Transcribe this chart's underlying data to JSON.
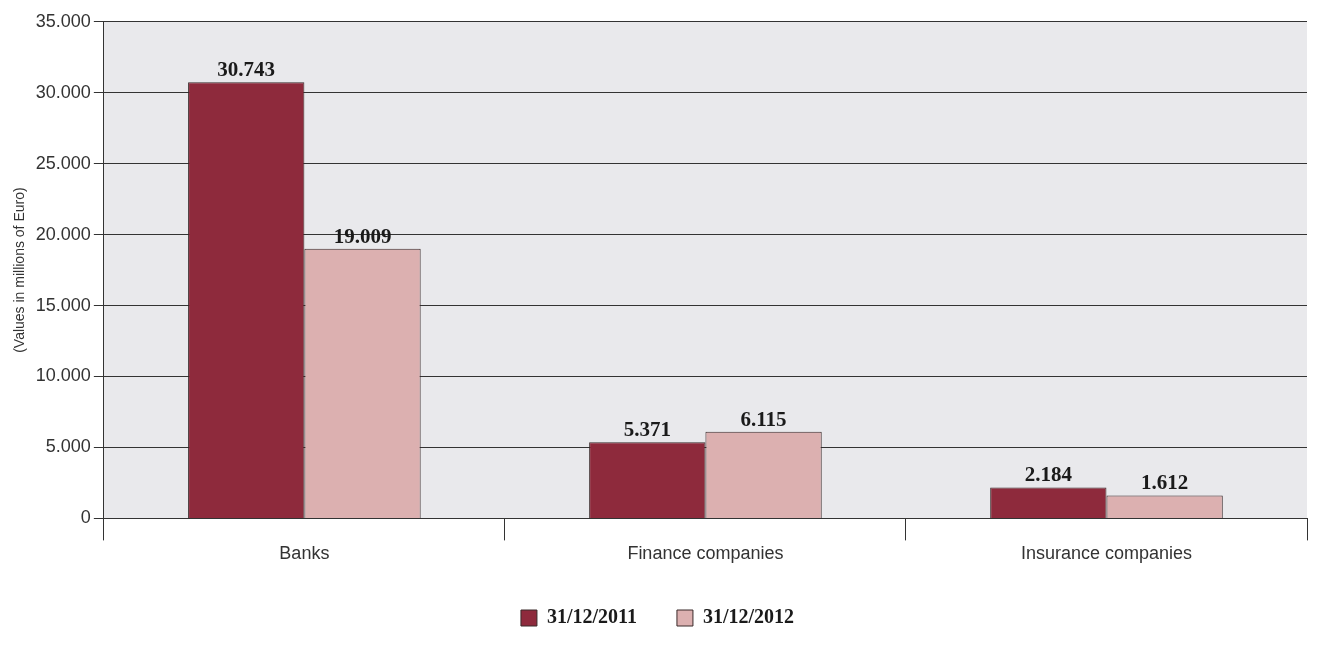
{
  "chart_data": {
    "type": "bar",
    "ylabel": "(Values in millions of Euro)",
    "categories": [
      "Banks",
      "Finance companies",
      "Insurance companies"
    ],
    "series": [
      {
        "name": "31/12/2011",
        "color": "#8e2a3c",
        "values": [
          30743,
          5371,
          2184
        ],
        "value_labels": [
          "30.743",
          "5.371",
          "2.184"
        ]
      },
      {
        "name": "31/12/2012",
        "color": "#dcb0b0",
        "values": [
          19009,
          6115,
          1612
        ],
        "value_labels": [
          "19.009",
          "6.115",
          "1.612"
        ]
      }
    ],
    "ylim": [
      0,
      35000
    ],
    "yticks": [
      {
        "value": 0,
        "label": "0"
      },
      {
        "value": 5000,
        "label": "5.000"
      },
      {
        "value": 10000,
        "label": "10.000"
      },
      {
        "value": 15000,
        "label": "15.000"
      },
      {
        "value": 20000,
        "label": "20.000"
      },
      {
        "value": 25000,
        "label": "25.000"
      },
      {
        "value": 30000,
        "label": "30.000"
      },
      {
        "value": 35000,
        "label": "35.000"
      }
    ],
    "grid": "y",
    "legend": "bottom"
  }
}
